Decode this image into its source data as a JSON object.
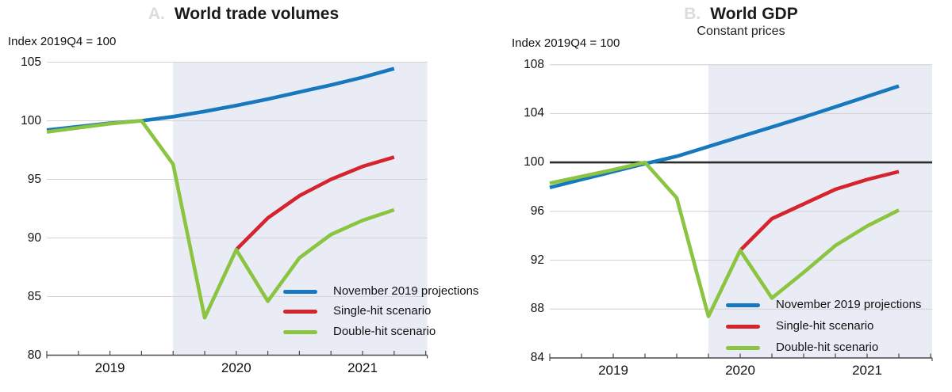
{
  "figure": {
    "background": "#ffffff"
  },
  "colors": {
    "forecast_shading": "#e9ecf5",
    "gridline": "#d4d4d4",
    "axis": "#4a4a4a",
    "baseline": "#2b2b2b",
    "blue": "#1878be",
    "red": "#d5242e",
    "green": "#8ac440"
  },
  "chart_data": [
    {
      "type": "line",
      "panel_label": "A.",
      "title": "World trade volumes",
      "subtitle": "",
      "unit_note": "Index 2019Q4 = 100",
      "x_quarters": [
        "2019Q1",
        "2019Q2",
        "2019Q3",
        "2019Q4",
        "2020Q1",
        "2020Q2",
        "2020Q3",
        "2020Q4",
        "2021Q1",
        "2021Q2",
        "2021Q3",
        "2021Q4"
      ],
      "x_year_labels": [
        "2019",
        "2020",
        "2021"
      ],
      "ylim": [
        80,
        105
      ],
      "y_ticks": [
        80,
        85,
        90,
        95,
        100,
        105
      ],
      "grid": true,
      "shaded_forecast_from": "2020Q1",
      "baseline_value": null,
      "legend_position": "lower-right-inside",
      "series": [
        {
          "name": "November 2019 projections",
          "color": "#1878be",
          "start": "2019Q1",
          "values": [
            99.2,
            99.5,
            99.8,
            100,
            100.35,
            100.8,
            101.3,
            101.85,
            102.45,
            103.05,
            103.7,
            104.45
          ]
        },
        {
          "name": "Single-hit scenario",
          "color": "#d5242e",
          "start": "2020Q3",
          "values": [
            89,
            91.7,
            93.6,
            95,
            96.1,
            96.9
          ]
        },
        {
          "name": "Double-hit scenario",
          "color": "#8ac440",
          "start": "2019Q1",
          "values": [
            99.05,
            99.4,
            99.75,
            100,
            96.3,
            83.2,
            89,
            84.6,
            88.3,
            90.3,
            91.5,
            92.4
          ]
        }
      ]
    },
    {
      "type": "line",
      "panel_label": "B.",
      "title": "World GDP",
      "subtitle": "Constant prices",
      "unit_note": "Index 2019Q4 = 100",
      "x_quarters": [
        "2019Q1",
        "2019Q2",
        "2019Q3",
        "2019Q4",
        "2020Q1",
        "2020Q2",
        "2020Q3",
        "2020Q4",
        "2021Q1",
        "2021Q2",
        "2021Q3",
        "2021Q4"
      ],
      "x_year_labels": [
        "2019",
        "2020",
        "2021"
      ],
      "ylim": [
        84,
        108
      ],
      "y_ticks": [
        84,
        88,
        92,
        96,
        100,
        104,
        108
      ],
      "grid": true,
      "shaded_forecast_from": "2020Q2",
      "baseline_value": 100,
      "legend_position": "lower-right-inside",
      "series": [
        {
          "name": "November 2019 projections",
          "color": "#1878be",
          "start": "2019Q1",
          "values": [
            97.95,
            98.6,
            99.25,
            99.9,
            100.5,
            101.3,
            102.1,
            102.9,
            103.7,
            104.55,
            105.4,
            106.25
          ]
        },
        {
          "name": "Single-hit scenario",
          "color": "#d5242e",
          "start": "2020Q3",
          "values": [
            92.8,
            95.4,
            96.6,
            97.8,
            98.6,
            99.25
          ]
        },
        {
          "name": "Double-hit scenario",
          "color": "#8ac440",
          "start": "2019Q1",
          "values": [
            98.3,
            98.85,
            99.4,
            100,
            97.1,
            87.4,
            92.8,
            88.9,
            91,
            93.2,
            94.8,
            96.1
          ]
        }
      ]
    }
  ]
}
